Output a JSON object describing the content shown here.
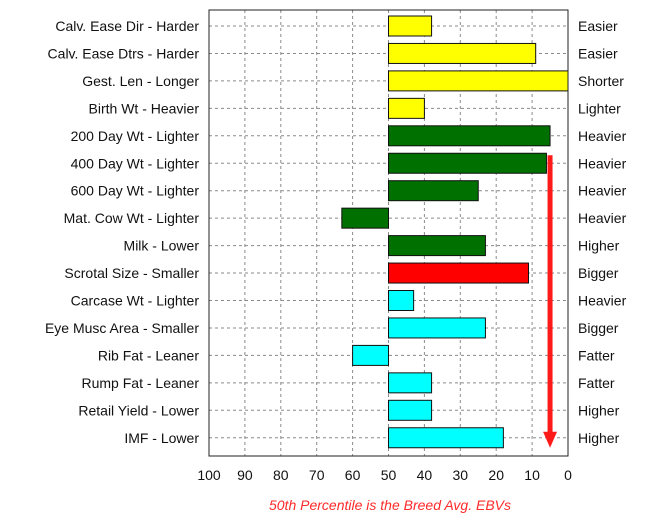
{
  "chart_data": {
    "type": "bar",
    "orientation": "horizontal",
    "title": "",
    "xlabel": "50th Percentile is the Breed Avg. EBVs",
    "ylabel": "",
    "xlim": [
      100,
      0
    ],
    "x_reversed": true,
    "x_ticks": [
      "100",
      "90",
      "80",
      "70",
      "60",
      "50",
      "40",
      "30",
      "20",
      "10",
      "0"
    ],
    "baseline": 50,
    "grid": true,
    "categories": [
      "Calv. Ease Dir - Harder",
      "Calv. Ease Dtrs - Harder",
      "Gest. Len - Longer",
      "Birth Wt - Heavier",
      "200 Day Wt - Lighter",
      "400 Day Wt - Lighter",
      "600 Day Wt - Lighter",
      "Mat. Cow Wt - Lighter",
      "Milk - Lower",
      "Scrotal Size - Smaller",
      "Carcase Wt - Lighter",
      "Eye Musc Area - Smaller",
      "Rib Fat - Leaner",
      "Rump Fat - Leaner",
      "Retail Yield - Lower",
      "IMF - Lower"
    ],
    "right_labels": [
      "Easier",
      "Easier",
      "Shorter",
      "Lighter",
      "Heavier",
      "Heavier",
      "Heavier",
      "Heavier",
      "Higher",
      "Bigger",
      "Heavier",
      "Bigger",
      "Fatter",
      "Fatter",
      "Higher",
      "Higher"
    ],
    "values": [
      38,
      9,
      0,
      40,
      5,
      6,
      25,
      63,
      23,
      11,
      43,
      23,
      60,
      38,
      38,
      18
    ],
    "colors": [
      "#ffff00",
      "#ffff00",
      "#ffff00",
      "#ffff00",
      "#007000",
      "#007000",
      "#007000",
      "#007000",
      "#007000",
      "#ff0000",
      "#00ffff",
      "#00ffff",
      "#00ffff",
      "#00ffff",
      "#00ffff",
      "#00ffff"
    ],
    "annotation_arrow": {
      "x": 5,
      "from_row": 5,
      "to_row": 15,
      "color": "#ff1a1a"
    }
  }
}
